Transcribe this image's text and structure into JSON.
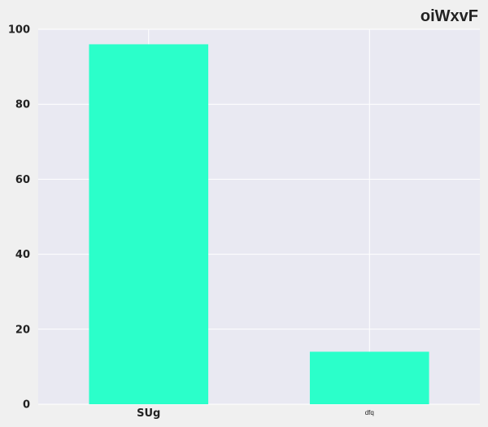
{
  "chart_data": {
    "type": "bar",
    "title": "oiWxvF",
    "categories": [
      "SUg",
      "dfq"
    ],
    "values": [
      96,
      14
    ],
    "xlabel": "",
    "ylabel": "",
    "ylim": [
      0,
      100
    ],
    "yticks": [
      0,
      20,
      40,
      60,
      80,
      100
    ],
    "grid": true,
    "legend": "none",
    "colors": {
      "bar": "#2bffca",
      "plot_background": "#e9e9f2",
      "page_background": "#f0f0f0",
      "grid": "#ffffff",
      "text": "#222222"
    }
  }
}
